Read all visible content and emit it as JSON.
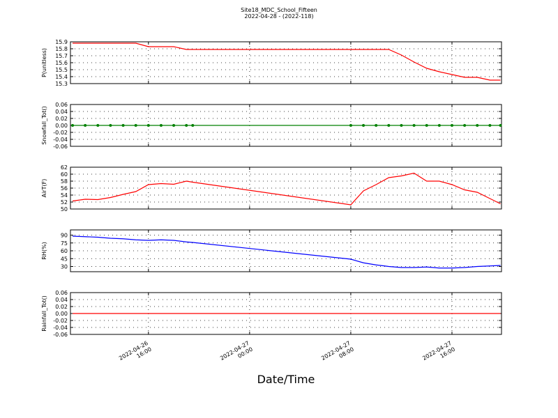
{
  "chart_data": [
    {
      "type": "line",
      "title": "Site18_MDC_School_Fifteen",
      "subtitle": "2022-04-28 - (2022-118)",
      "ylabel": "P(unitless)",
      "x": [
        "2022-04-26 10:00",
        "2022-04-26 11:00",
        "2022-04-26 12:00",
        "2022-04-26 13:00",
        "2022-04-26 14:00",
        "2022-04-26 15:00",
        "2022-04-26 16:00",
        "2022-04-26 17:00",
        "2022-04-26 18:00",
        "2022-04-26 19:00",
        "2022-04-26 19:30",
        "2022-04-27 08:00",
        "2022-04-27 09:00",
        "2022-04-27 10:00",
        "2022-04-27 11:00",
        "2022-04-27 12:00",
        "2022-04-27 13:00",
        "2022-04-27 14:00",
        "2022-04-27 15:00",
        "2022-04-27 16:00",
        "2022-04-27 17:00",
        "2022-04-27 18:00",
        "2022-04-27 19:00",
        "2022-04-27 19:50"
      ],
      "series": [
        {
          "color": "#ff0000",
          "values": [
            15.88,
            15.88,
            15.88,
            15.88,
            15.88,
            15.88,
            15.83,
            15.83,
            15.83,
            15.79,
            15.79,
            15.79,
            15.79,
            15.79,
            15.79,
            15.71,
            15.61,
            15.52,
            15.47,
            15.43,
            15.39,
            15.39,
            15.35,
            15.35
          ]
        }
      ],
      "xlim": [
        "2022-04-26 09:50",
        "2022-04-27 19:55"
      ],
      "xticks": [
        "2022-04-26 16:00",
        "2022-04-27 00:00",
        "2022-04-27 08:00",
        "2022-04-27 16:00"
      ],
      "ylim": [
        15.3,
        15.9
      ],
      "yticks": [
        15.3,
        15.4,
        15.5,
        15.6,
        15.7,
        15.8,
        15.9
      ],
      "grid": true
    },
    {
      "type": "line",
      "ylabel": "Snowfall_Tot()",
      "x": [
        "2022-04-26 10:00",
        "2022-04-26 11:00",
        "2022-04-26 12:00",
        "2022-04-26 13:00",
        "2022-04-26 14:00",
        "2022-04-26 15:00",
        "2022-04-26 16:00",
        "2022-04-26 17:00",
        "2022-04-26 18:00",
        "2022-04-26 19:00",
        "2022-04-26 19:30",
        "2022-04-27 08:00",
        "2022-04-27 09:00",
        "2022-04-27 10:00",
        "2022-04-27 11:00",
        "2022-04-27 12:00",
        "2022-04-27 13:00",
        "2022-04-27 14:00",
        "2022-04-27 15:00",
        "2022-04-27 16:00",
        "2022-04-27 17:00",
        "2022-04-27 18:00",
        "2022-04-27 19:00",
        "2022-04-27 19:50"
      ],
      "series": [
        {
          "color": "#008000",
          "marker": true,
          "values": [
            0,
            0,
            0,
            0,
            0,
            0,
            0,
            0,
            0,
            0,
            0,
            0,
            0,
            0,
            0,
            0,
            0,
            0,
            0,
            0,
            0,
            0,
            0,
            0
          ]
        }
      ],
      "xlim": [
        "2022-04-26 09:50",
        "2022-04-27 19:55"
      ],
      "xticks": [
        "2022-04-26 16:00",
        "2022-04-27 00:00",
        "2022-04-27 08:00",
        "2022-04-27 16:00"
      ],
      "ylim": [
        -0.06,
        0.06
      ],
      "yticks": [
        -0.06,
        -0.04,
        -0.02,
        {
          "value": 0,
          "label": "0.00"
        },
        0.02,
        0.04,
        0.06
      ],
      "grid": true
    },
    {
      "type": "line",
      "ylabel": "AirT(F)",
      "x": [
        "2022-04-26 10:00",
        "2022-04-26 11:00",
        "2022-04-26 12:00",
        "2022-04-26 13:00",
        "2022-04-26 14:00",
        "2022-04-26 15:00",
        "2022-04-26 16:00",
        "2022-04-26 17:00",
        "2022-04-26 18:00",
        "2022-04-26 19:00",
        "2022-04-26 19:30",
        "2022-04-27 08:00",
        "2022-04-27 09:00",
        "2022-04-27 10:00",
        "2022-04-27 11:00",
        "2022-04-27 12:00",
        "2022-04-27 13:00",
        "2022-04-27 14:00",
        "2022-04-27 15:00",
        "2022-04-27 16:00",
        "2022-04-27 17:00",
        "2022-04-27 18:00",
        "2022-04-27 19:00",
        "2022-04-27 19:50"
      ],
      "series": [
        {
          "color": "#ff0000",
          "values": [
            52.3,
            52.8,
            52.7,
            53.3,
            54.2,
            55.0,
            57.0,
            57.3,
            57.1,
            58.0,
            57.7,
            51.2,
            55.2,
            57.0,
            59.0,
            59.5,
            60.3,
            58.0,
            58.0,
            57.0,
            55.5,
            54.8,
            53.0,
            51.5
          ]
        }
      ],
      "xlim": [
        "2022-04-26 09:50",
        "2022-04-27 19:55"
      ],
      "xticks": [
        "2022-04-26 16:00",
        "2022-04-27 00:00",
        "2022-04-27 08:00",
        "2022-04-27 16:00"
      ],
      "ylim": [
        50,
        62
      ],
      "yticks": [
        50,
        52,
        54,
        56,
        58,
        60,
        62
      ],
      "grid": true
    },
    {
      "type": "line",
      "ylabel": "RH(%)",
      "x": [
        "2022-04-26 10:00",
        "2022-04-26 11:00",
        "2022-04-26 12:00",
        "2022-04-26 13:00",
        "2022-04-26 14:00",
        "2022-04-26 15:00",
        "2022-04-26 16:00",
        "2022-04-26 17:00",
        "2022-04-26 18:00",
        "2022-04-26 19:00",
        "2022-04-26 19:30",
        "2022-04-27 08:00",
        "2022-04-27 09:00",
        "2022-04-27 10:00",
        "2022-04-27 11:00",
        "2022-04-27 12:00",
        "2022-04-27 13:00",
        "2022-04-27 14:00",
        "2022-04-27 15:00",
        "2022-04-27 16:00",
        "2022-04-27 17:00",
        "2022-04-27 18:00",
        "2022-04-27 19:00",
        "2022-04-27 19:50"
      ],
      "series": [
        {
          "color": "#0000ff",
          "values": [
            88,
            87,
            86,
            84,
            83,
            81,
            80,
            81,
            80,
            77,
            76,
            44,
            37,
            33,
            30,
            28,
            28,
            29,
            27,
            27,
            28,
            30,
            31,
            32
          ]
        }
      ],
      "xlim": [
        "2022-04-26 09:50",
        "2022-04-27 19:55"
      ],
      "xticks": [
        "2022-04-26 16:00",
        "2022-04-27 00:00",
        "2022-04-27 08:00",
        "2022-04-27 16:00"
      ],
      "ylim": [
        20,
        100
      ],
      "yticks": [
        30,
        45,
        60,
        75,
        90
      ],
      "grid": true
    },
    {
      "type": "line",
      "ylabel": "Rainfall_Tot()",
      "xlabel": "Date/Time",
      "show_xticklabels": true,
      "x": [
        "2022-04-26 10:00",
        "2022-04-26 11:00",
        "2022-04-26 12:00",
        "2022-04-26 13:00",
        "2022-04-26 14:00",
        "2022-04-26 15:00",
        "2022-04-26 16:00",
        "2022-04-26 17:00",
        "2022-04-26 18:00",
        "2022-04-26 19:00",
        "2022-04-26 19:30",
        "2022-04-27 08:00",
        "2022-04-27 09:00",
        "2022-04-27 10:00",
        "2022-04-27 11:00",
        "2022-04-27 12:00",
        "2022-04-27 13:00",
        "2022-04-27 14:00",
        "2022-04-27 15:00",
        "2022-04-27 16:00",
        "2022-04-27 17:00",
        "2022-04-27 18:00",
        "2022-04-27 19:00",
        "2022-04-27 19:50"
      ],
      "series": [
        {
          "color": "#ff0000",
          "values": [
            0,
            0,
            0,
            0,
            0,
            0,
            0,
            0,
            0,
            0,
            0,
            0,
            0,
            0,
            0,
            0,
            0,
            0,
            0,
            0,
            0,
            0,
            0,
            0
          ]
        }
      ],
      "xlim": [
        "2022-04-26 09:50",
        "2022-04-27 19:55"
      ],
      "xticks": [
        "2022-04-26 16:00",
        "2022-04-27 00:00",
        "2022-04-27 08:00",
        "2022-04-27 16:00"
      ],
      "ylim": [
        -0.06,
        0.06
      ],
      "yticks": [
        -0.06,
        -0.04,
        -0.02,
        {
          "value": 0,
          "label": "0.00"
        },
        0.02,
        0.04,
        0.06
      ],
      "grid": true
    }
  ]
}
